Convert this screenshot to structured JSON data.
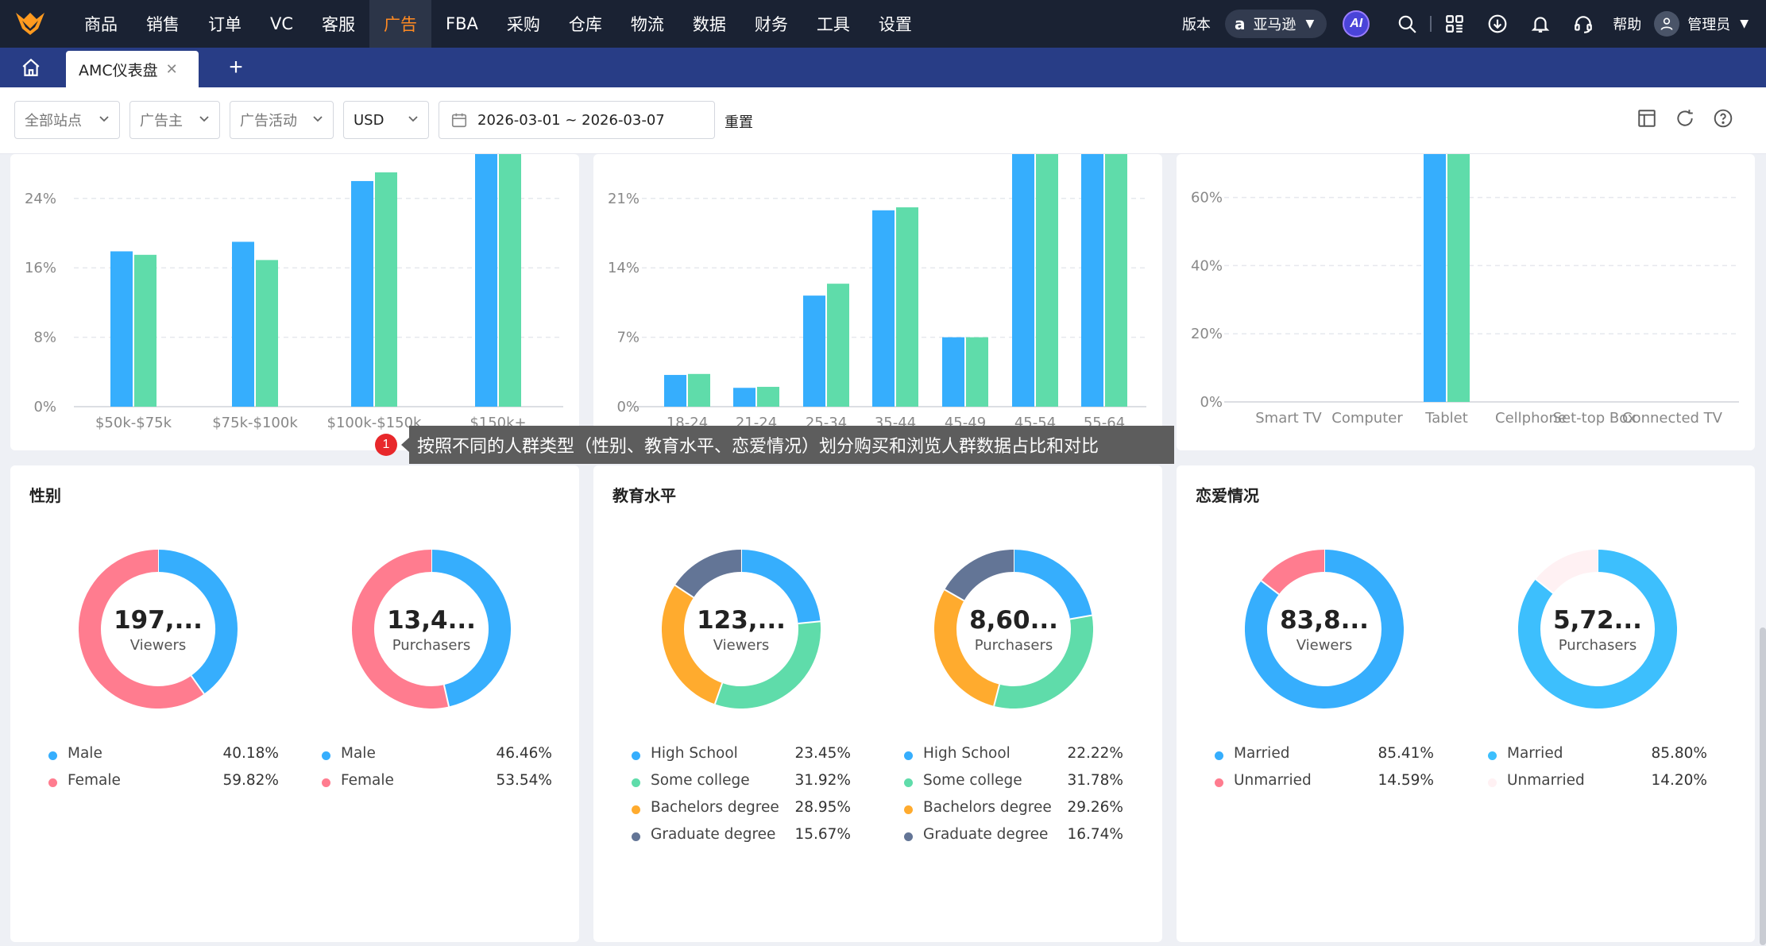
{
  "nav": {
    "items": [
      "商品",
      "销售",
      "订单",
      "VC",
      "客服",
      "广告",
      "FBA",
      "采购",
      "仓库",
      "物流",
      "数据",
      "财务",
      "工具",
      "设置"
    ],
    "active_index": 5,
    "version_label": "版本",
    "marketplace": "亚马逊",
    "ai_label": "AI",
    "help_label": "帮助",
    "user_name": "管理员"
  },
  "tabs": {
    "active": "AMC仪表盘",
    "add": "+"
  },
  "filters": {
    "site": "全部站点",
    "advertiser": "广告主",
    "campaign": "广告活动",
    "currency": "USD",
    "date_range": "2026-03-01 ~ 2026-03-07",
    "reset": "重置"
  },
  "colors": {
    "viewers": "#36aefd",
    "purchasers": "#5fdcaa",
    "female": "#ff7c8f",
    "bachelor": "#ffab2e",
    "graduate": "#637596"
  },
  "chart_data": [
    {
      "type": "bar",
      "categories": [
        "$50k-$75k",
        "$75k-$100k",
        "$100k-$150k",
        "$150k+"
      ],
      "series": [
        {
          "values": [
            17.9,
            19.0,
            26.0,
            30.0
          ]
        },
        {
          "values": [
            17.5,
            16.9,
            27.0,
            30.0
          ]
        }
      ],
      "yticks": [
        "0%",
        "8%",
        "16%",
        "24%"
      ],
      "ylim": [
        0,
        30
      ]
    },
    {
      "type": "bar",
      "categories": [
        "18-24",
        "21-24",
        "25-34",
        "35-44",
        "45-49",
        "45-54",
        "55-64"
      ],
      "series": [
        {
          "values": [
            3.2,
            1.9,
            11.2,
            19.8,
            7.0,
            28.0,
            28.0
          ]
        },
        {
          "values": [
            3.3,
            2.0,
            12.4,
            20.1,
            7.0,
            28.0,
            28.0
          ]
        }
      ],
      "yticks": [
        "0%",
        "7%",
        "14%",
        "21%"
      ],
      "ylim": [
        0,
        27
      ]
    },
    {
      "type": "bar",
      "categories": [
        "Smart TV",
        "Computer",
        "Tablet",
        "Cellphone",
        "Set-top Box",
        "Connected TV"
      ],
      "series": [
        {
          "values": [
            0,
            0,
            80,
            0,
            0,
            0
          ]
        },
        {
          "values": [
            0,
            0,
            80,
            0,
            0,
            0
          ]
        }
      ],
      "yticks": [
        "0%",
        "20%",
        "40%",
        "60%"
      ],
      "ylim": [
        0,
        73
      ]
    }
  ],
  "tooltip": {
    "num": "1",
    "text": "按照不同的人群类型（性别、教育水平、恋爱情况）划分购买和浏览人群数据占比和对比"
  },
  "cards": [
    {
      "title": "性别",
      "donuts": [
        {
          "value": "197,...",
          "label": "Viewers",
          "items": [
            {
              "name": "Male",
              "pct": "40.18%",
              "color": "#36aefd"
            },
            {
              "name": "Female",
              "pct": "59.82%",
              "color": "#ff7c8f"
            }
          ]
        },
        {
          "value": "13,4...",
          "label": "Purchasers",
          "items": [
            {
              "name": "Male",
              "pct": "46.46%",
              "color": "#36aefd"
            },
            {
              "name": "Female",
              "pct": "53.54%",
              "color": "#ff7c8f"
            }
          ]
        }
      ]
    },
    {
      "title": "教育水平",
      "donuts": [
        {
          "value": "123,...",
          "label": "Viewers",
          "items": [
            {
              "name": "High School",
              "pct": "23.45%",
              "color": "#36aefd"
            },
            {
              "name": "Some college",
              "pct": "31.92%",
              "color": "#5fdcaa"
            },
            {
              "name": "Bachelors degree",
              "pct": "28.95%",
              "color": "#ffab2e"
            },
            {
              "name": "Graduate degree",
              "pct": "15.67%",
              "color": "#637596"
            }
          ]
        },
        {
          "value": "8,60...",
          "label": "Purchasers",
          "items": [
            {
              "name": "High School",
              "pct": "22.22%",
              "color": "#36aefd"
            },
            {
              "name": "Some college",
              "pct": "31.78%",
              "color": "#5fdcaa"
            },
            {
              "name": "Bachelors degree",
              "pct": "29.26%",
              "color": "#ffab2e"
            },
            {
              "name": "Graduate degree",
              "pct": "16.74%",
              "color": "#637596"
            }
          ]
        }
      ]
    },
    {
      "title": "恋爱情况",
      "donuts": [
        {
          "value": "83,8...",
          "label": "Viewers",
          "items": [
            {
              "name": "Married",
              "pct": "85.41%",
              "color": "#36aefd"
            },
            {
              "name": "Unmarried",
              "pct": "14.59%",
              "color": "#ff7c8f"
            }
          ]
        },
        {
          "value": "5,72...",
          "label": "Purchasers",
          "items": [
            {
              "name": "Married",
              "pct": "85.80%",
              "color": "#3dbffd"
            },
            {
              "name": "Unmarried",
              "pct": "14.20%",
              "color": "#fff1f3"
            }
          ]
        }
      ]
    }
  ]
}
